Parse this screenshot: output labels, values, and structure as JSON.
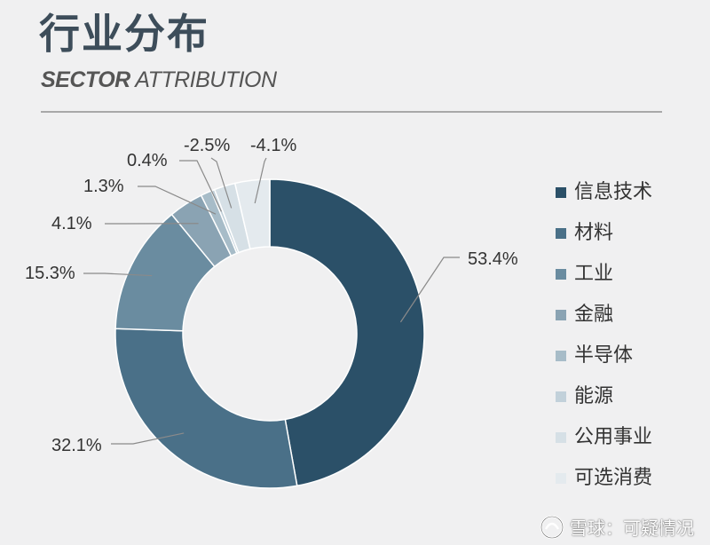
{
  "header": {
    "title": "行业分布",
    "subtitle_bold": "SECTOR",
    "subtitle_light": " ATTRIBUTION"
  },
  "watermark": {
    "text": "雪球：可疑情况"
  },
  "chart_data": {
    "type": "pie",
    "donut": true,
    "title": "行业分布",
    "subtitle": "SECTOR ATTRIBUTION",
    "legend_position": "right",
    "slices": [
      {
        "name": "信息技术",
        "value": 53.4,
        "label": "53.4%",
        "color": "#2b5068"
      },
      {
        "name": "材料",
        "value": 32.1,
        "label": "32.1%",
        "color": "#4a7088"
      },
      {
        "name": "工业",
        "value": 15.3,
        "label": "15.3%",
        "color": "#6a8ca0"
      },
      {
        "name": "金融",
        "value": 4.1,
        "label": "4.1%",
        "color": "#8aa3b3"
      },
      {
        "name": "半导体",
        "value": 1.3,
        "label": "1.3%",
        "color": "#a7bcc8"
      },
      {
        "name": "能源",
        "value": 0.4,
        "label": "0.4%",
        "color": "#c2d1da"
      },
      {
        "name": "公用事业",
        "value": -2.5,
        "label": "-2.5%",
        "color": "#d6e0e6"
      },
      {
        "name": "可选消费",
        "value": -4.1,
        "label": "-4.1%",
        "color": "#e4eaee"
      }
    ]
  }
}
